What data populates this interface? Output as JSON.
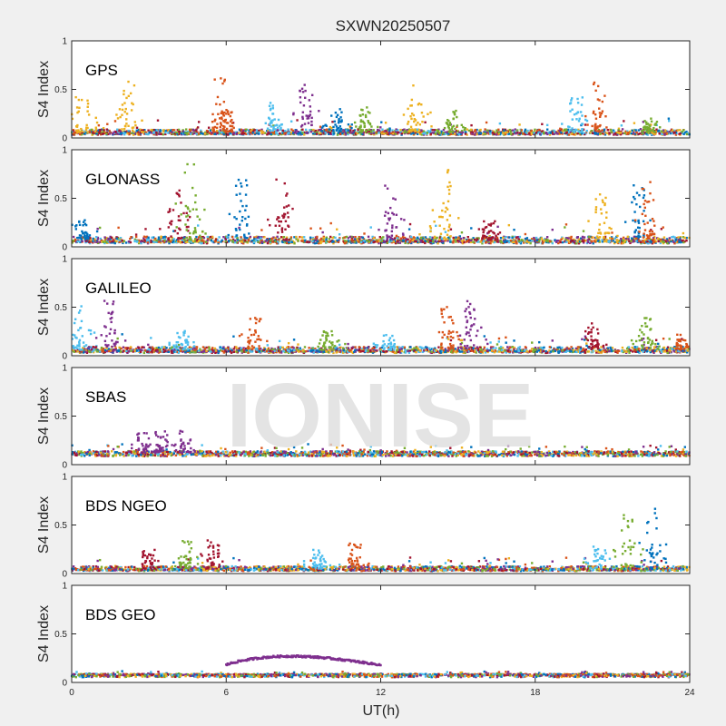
{
  "chart_data": {
    "type": "scatter",
    "title": "SXWN20250507",
    "xlabel": "UT(h)",
    "ylabel": "S4 Index",
    "xlim": [
      0,
      24
    ],
    "xticks": [
      0,
      6,
      12,
      18,
      24
    ],
    "ylim": [
      0,
      1
    ],
    "yticks": [
      0,
      0.5,
      1
    ],
    "watermark": "IONISE",
    "colors": [
      "#0072BD",
      "#D95319",
      "#EDB120",
      "#7E2F8E",
      "#77AC30",
      "#4DBEEE",
      "#A2142F"
    ],
    "panels": [
      {
        "label": "GPS",
        "baseline": 0.06,
        "noise": 0.08,
        "spikes": [
          [
            0.4,
            0.48,
            2
          ],
          [
            2.2,
            0.65,
            2
          ],
          [
            5.7,
            0.73,
            1
          ],
          [
            6.0,
            0.32,
            1
          ],
          [
            7.9,
            0.38,
            5
          ],
          [
            9.1,
            0.56,
            3
          ],
          [
            10.3,
            0.3,
            0
          ],
          [
            11.4,
            0.32,
            4
          ],
          [
            13.4,
            0.6,
            2
          ],
          [
            14.8,
            0.3,
            4
          ],
          [
            19.6,
            0.44,
            5
          ],
          [
            20.5,
            0.59,
            1
          ],
          [
            22.5,
            0.2,
            4
          ]
        ]
      },
      {
        "label": "GLONASS",
        "baseline": 0.07,
        "noise": 0.1,
        "spikes": [
          [
            0.4,
            0.28,
            0
          ],
          [
            4.0,
            0.71,
            6
          ],
          [
            4.6,
            0.93,
            4
          ],
          [
            6.6,
            0.7,
            0
          ],
          [
            8.2,
            0.8,
            6
          ],
          [
            12.4,
            0.66,
            3
          ],
          [
            14.5,
            0.8,
            2
          ],
          [
            16.2,
            0.28,
            6
          ],
          [
            20.6,
            0.55,
            2
          ],
          [
            22.0,
            0.64,
            0
          ],
          [
            22.4,
            0.68,
            1
          ]
        ]
      },
      {
        "label": "GALILEO",
        "baseline": 0.06,
        "noise": 0.09,
        "spikes": [
          [
            0.3,
            0.52,
            5
          ],
          [
            1.5,
            0.6,
            3
          ],
          [
            4.3,
            0.26,
            5
          ],
          [
            7.1,
            0.42,
            1
          ],
          [
            9.9,
            0.28,
            4
          ],
          [
            12.3,
            0.24,
            5
          ],
          [
            14.6,
            0.58,
            1
          ],
          [
            15.5,
            0.6,
            3
          ],
          [
            20.2,
            0.34,
            6
          ],
          [
            22.3,
            0.41,
            4
          ],
          [
            23.7,
            0.22,
            1
          ]
        ]
      },
      {
        "label": "SBAS",
        "baseline": 0.12,
        "noise": 0.05,
        "spikes": [
          [
            2.8,
            0.33,
            3
          ],
          [
            3.5,
            0.35,
            3
          ],
          [
            4.4,
            0.35,
            3
          ]
        ]
      },
      {
        "label": "BDS NGEO",
        "baseline": 0.05,
        "noise": 0.07,
        "spikes": [
          [
            3.0,
            0.27,
            6
          ],
          [
            4.4,
            0.34,
            4
          ],
          [
            5.5,
            0.39,
            6
          ],
          [
            9.6,
            0.25,
            5
          ],
          [
            11.0,
            0.31,
            1
          ],
          [
            20.5,
            0.28,
            5
          ],
          [
            21.6,
            0.64,
            4
          ],
          [
            22.5,
            0.68,
            0
          ]
        ]
      },
      {
        "label": "BDS GEO",
        "baseline": 0.08,
        "noise": 0.02,
        "spikes": [],
        "arc": {
          "from": 6.0,
          "to": 12.0,
          "peak": 0.27,
          "base": 0.18,
          "color": 3
        }
      }
    ]
  }
}
